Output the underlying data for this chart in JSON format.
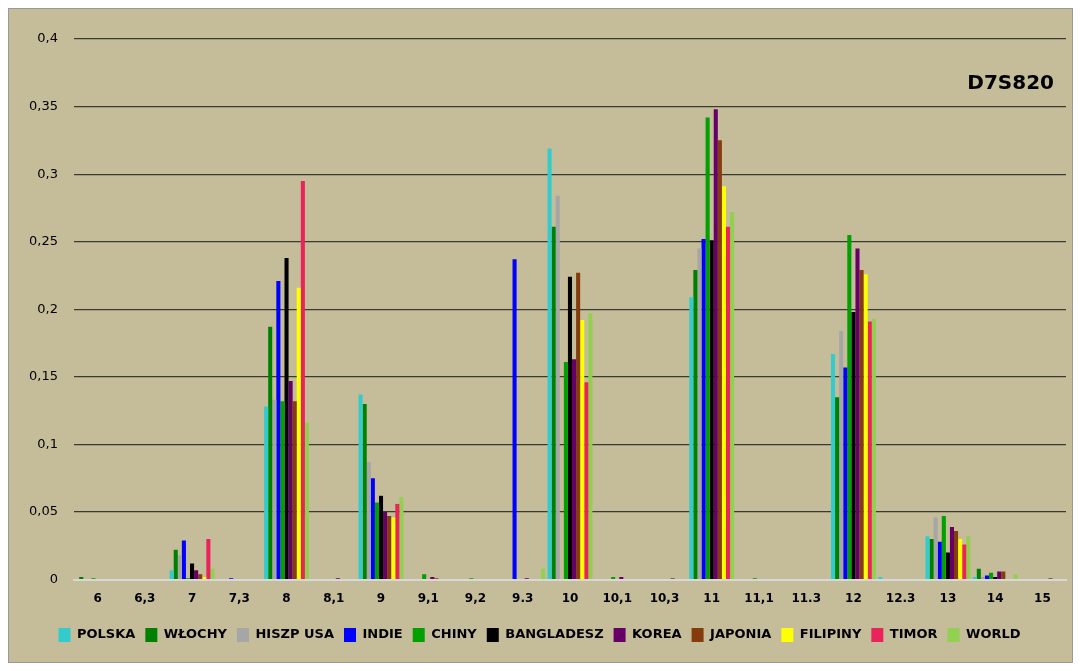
{
  "chart_data": {
    "type": "bar",
    "title": "D7S820",
    "categories": [
      "6",
      "6,3",
      "7",
      "7,3",
      "8",
      "8,1",
      "9",
      "9,1",
      "9,2",
      "9.3",
      "10",
      "10,1",
      "10,3",
      "11",
      "11,1",
      "11.3",
      "12",
      "12.3",
      "13",
      "14",
      "15"
    ],
    "series": [
      {
        "name": "POLSKA",
        "color": "#33cccc",
        "values": [
          null,
          null,
          0.007,
          null,
          0.128,
          null,
          0.137,
          null,
          null,
          null,
          0.319,
          null,
          null,
          0.209,
          null,
          null,
          0.167,
          0.002,
          0.032,
          0.002,
          null
        ]
      },
      {
        "name": "WŁOCHY",
        "color": "#008000",
        "values": [
          0.002,
          null,
          0.022,
          null,
          0.187,
          null,
          0.13,
          null,
          null,
          null,
          0.261,
          null,
          null,
          0.229,
          null,
          null,
          0.135,
          null,
          0.03,
          0.008,
          null
        ]
      },
      {
        "name": "HISZP USA",
        "color": "#a6a6a6",
        "values": [
          null,
          null,
          0.018,
          null,
          0.133,
          null,
          0.087,
          null,
          null,
          null,
          0.284,
          null,
          null,
          0.245,
          null,
          null,
          0.184,
          null,
          0.046,
          0.002,
          null
        ]
      },
      {
        "name": "INDIE",
        "color": "#0000ff",
        "values": [
          null,
          null,
          0.029,
          0.001,
          0.221,
          null,
          0.075,
          null,
          null,
          0.237,
          null,
          null,
          null,
          0.252,
          null,
          null,
          0.157,
          null,
          0.028,
          0.003,
          null
        ]
      },
      {
        "name": "CHINY",
        "color": "#00a000",
        "values": [
          0.001,
          null,
          0.001,
          null,
          0.132,
          null,
          0.057,
          0.004,
          0.001,
          null,
          0.161,
          0.002,
          null,
          0.342,
          0.001,
          null,
          0.255,
          null,
          0.047,
          0.005,
          null
        ]
      },
      {
        "name": "BANGLADESZ",
        "color": "#000000",
        "values": [
          null,
          null,
          0.012,
          null,
          0.238,
          null,
          0.062,
          null,
          null,
          null,
          0.224,
          null,
          null,
          0.251,
          null,
          null,
          0.198,
          null,
          0.02,
          0.002,
          null
        ]
      },
      {
        "name": "KOREA",
        "color": "#660066",
        "values": [
          null,
          null,
          0.007,
          null,
          0.147,
          0.001,
          0.05,
          0.002,
          null,
          0.001,
          0.163,
          0.002,
          null,
          0.348,
          null,
          null,
          0.245,
          null,
          0.039,
          0.006,
          null
        ]
      },
      {
        "name": "JAPONIA",
        "color": "#843c0c",
        "values": [
          null,
          null,
          0.004,
          null,
          0.132,
          null,
          0.047,
          0.001,
          null,
          null,
          0.227,
          null,
          0.001,
          0.325,
          null,
          null,
          0.229,
          null,
          0.036,
          0.006,
          0.001
        ]
      },
      {
        "name": "FILIPINY",
        "color": "#ffff00",
        "values": [
          null,
          null,
          0.002,
          null,
          0.216,
          null,
          0.046,
          null,
          null,
          null,
          0.192,
          null,
          null,
          0.291,
          null,
          null,
          0.226,
          null,
          0.03,
          null,
          null
        ]
      },
      {
        "name": "TIMOR",
        "color": "#e8245a",
        "values": [
          null,
          null,
          0.03,
          null,
          0.295,
          null,
          0.056,
          null,
          null,
          null,
          0.146,
          null,
          null,
          0.261,
          null,
          null,
          0.191,
          null,
          0.026,
          null,
          null
        ]
      },
      {
        "name": "WORLD",
        "color": "#92d050",
        "values": [
          null,
          null,
          0.008,
          null,
          0.116,
          null,
          0.061,
          null,
          null,
          0.008,
          0.197,
          null,
          null,
          0.272,
          null,
          null,
          0.193,
          null,
          0.032,
          0.004,
          null
        ]
      }
    ],
    "ylim": [
      0,
      0.4
    ],
    "yticks": [
      {
        "value": 0,
        "label": "0"
      },
      {
        "value": 0.05,
        "label": "0,05"
      },
      {
        "value": 0.1,
        "label": "0,1"
      },
      {
        "value": 0.15,
        "label": "0,15"
      },
      {
        "value": 0.2,
        "label": "0,2"
      },
      {
        "value": 0.25,
        "label": "0,25"
      },
      {
        "value": 0.3,
        "label": "0,3"
      },
      {
        "value": 0.35,
        "label": "0,35"
      },
      {
        "value": 0.4,
        "label": "0,4"
      }
    ],
    "grid": "y",
    "legend": "bottom"
  }
}
